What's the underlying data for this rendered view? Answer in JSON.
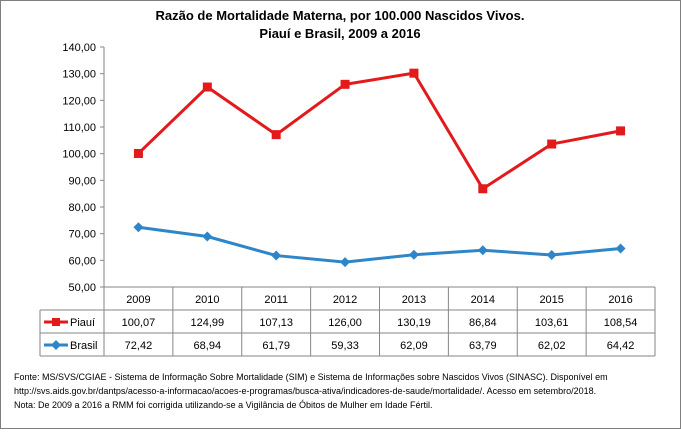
{
  "chart_data": {
    "type": "line",
    "title": "Razão de Mortalidade Materna, por 100.000 Nascidos Vivos.",
    "subtitle": "Piauí e Brasil, 2009 a 2016",
    "categories": [
      "2009",
      "2010",
      "2011",
      "2012",
      "2013",
      "2014",
      "2015",
      "2016"
    ],
    "series": [
      {
        "name": "Piauí",
        "color": "#e31a1c",
        "marker": "square",
        "values": [
          100.07,
          124.99,
          107.13,
          126.0,
          130.19,
          86.84,
          103.61,
          108.54
        ],
        "labels": [
          "100,07",
          "124,99",
          "107,13",
          "126,00",
          "130,19",
          "86,84",
          "103,61",
          "108,54"
        ]
      },
      {
        "name": "Brasil",
        "color": "#2e86c8",
        "marker": "diamond",
        "values": [
          72.42,
          68.94,
          61.79,
          59.33,
          62.09,
          63.79,
          62.02,
          64.42
        ],
        "labels": [
          "72,42",
          "68,94",
          "61,79",
          "59,33",
          "62,09",
          "63,79",
          "62,02",
          "64,42"
        ]
      }
    ],
    "ylim": [
      50,
      140
    ],
    "yticks": [
      "50,00",
      "60,00",
      "70,00",
      "80,00",
      "90,00",
      "100,00",
      "110,00",
      "120,00",
      "130,00",
      "140,00"
    ],
    "grid": false,
    "legend": "data-table"
  },
  "footer": {
    "line1": "Fonte: MS/SVS/CGIAE - Sistema de Informação Sobre Mortalidade (SIM) e Sistema de Informações sobre Nascidos Vivos (SINASC). Disponível em",
    "line2": "http://svs.aids.gov.br/dantps/acesso-a-informacao/acoes-e-programas/busca-ativa/indicadores-de-saude/mortalidade/. Acesso em setembro/2018.",
    "line3": "Nota: De 2009 a 2016 a RMM foi corrigida utilizando-se a Vigilância de Óbitos de Mulher em Idade Fértil."
  }
}
